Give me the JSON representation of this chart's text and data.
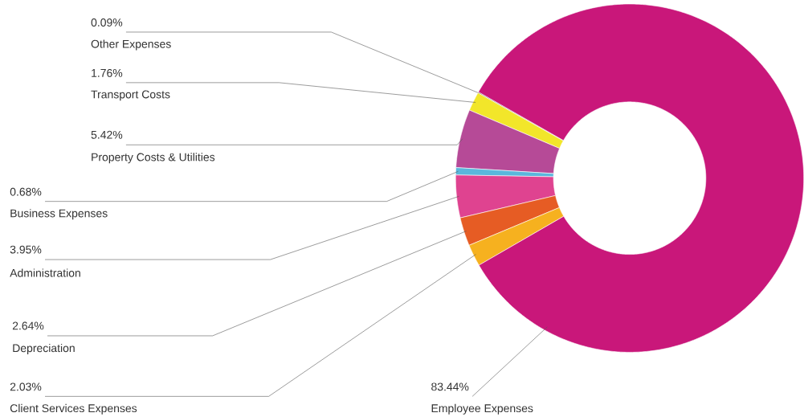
{
  "chart_data": {
    "type": "donut",
    "categories": [
      "Other Expenses",
      "Transport Costs",
      "Property Costs & Utilities",
      "Business Expenses",
      "Administration",
      "Depreciation",
      "Client Services Expenses",
      "Employee Expenses"
    ],
    "values": [
      0.09,
      1.76,
      5.42,
      0.68,
      3.95,
      2.64,
      2.03,
      83.44
    ],
    "value_labels": [
      "0.09%",
      "1.76%",
      "5.42%",
      "0.68%",
      "3.95%",
      "2.64%",
      "2.03%",
      "83.44%"
    ],
    "colors": [
      "#4a5662",
      "#f2e62a",
      "#b64a97",
      "#5ab7dc",
      "#df4390",
      "#e65c24",
      "#f6b11f",
      "#c9177a"
    ]
  }
}
